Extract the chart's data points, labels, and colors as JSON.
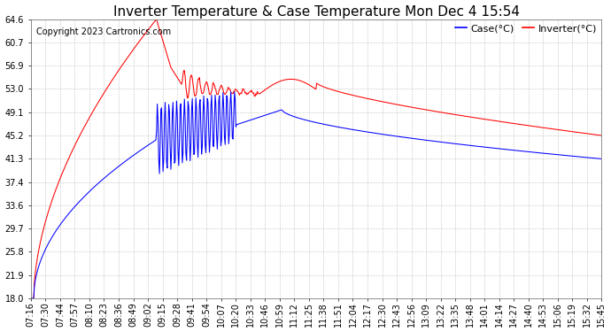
{
  "title": "Inverter Temperature & Case Temperature Mon Dec 4 15:54",
  "copyright": "Copyright 2023 Cartronics.com",
  "legend_case": "Case(°C)",
  "legend_inverter": "Inverter(°C)",
  "case_color": "blue",
  "inverter_color": "red",
  "ylim": [
    18.0,
    64.6
  ],
  "yticks": [
    18.0,
    21.9,
    25.8,
    29.7,
    33.6,
    37.4,
    41.3,
    45.2,
    49.1,
    53.0,
    56.9,
    60.7,
    64.6
  ],
  "background_color": "#ffffff",
  "grid_color": "#aaaaaa",
  "title_fontsize": 11,
  "tick_fontsize": 7,
  "copyright_fontsize": 7,
  "legend_fontsize": 8,
  "x_tick_labels": [
    "07:16",
    "07:30",
    "07:44",
    "07:57",
    "08:10",
    "08:23",
    "08:36",
    "08:49",
    "09:02",
    "09:15",
    "09:28",
    "09:41",
    "09:54",
    "10:07",
    "10:20",
    "10:33",
    "10:46",
    "10:59",
    "11:12",
    "11:25",
    "11:38",
    "11:51",
    "12:04",
    "12:17",
    "12:30",
    "12:43",
    "12:56",
    "13:09",
    "13:22",
    "13:35",
    "13:48",
    "14:01",
    "14:14",
    "14:27",
    "14:40",
    "14:53",
    "15:06",
    "15:19",
    "15:32",
    "15:45"
  ]
}
